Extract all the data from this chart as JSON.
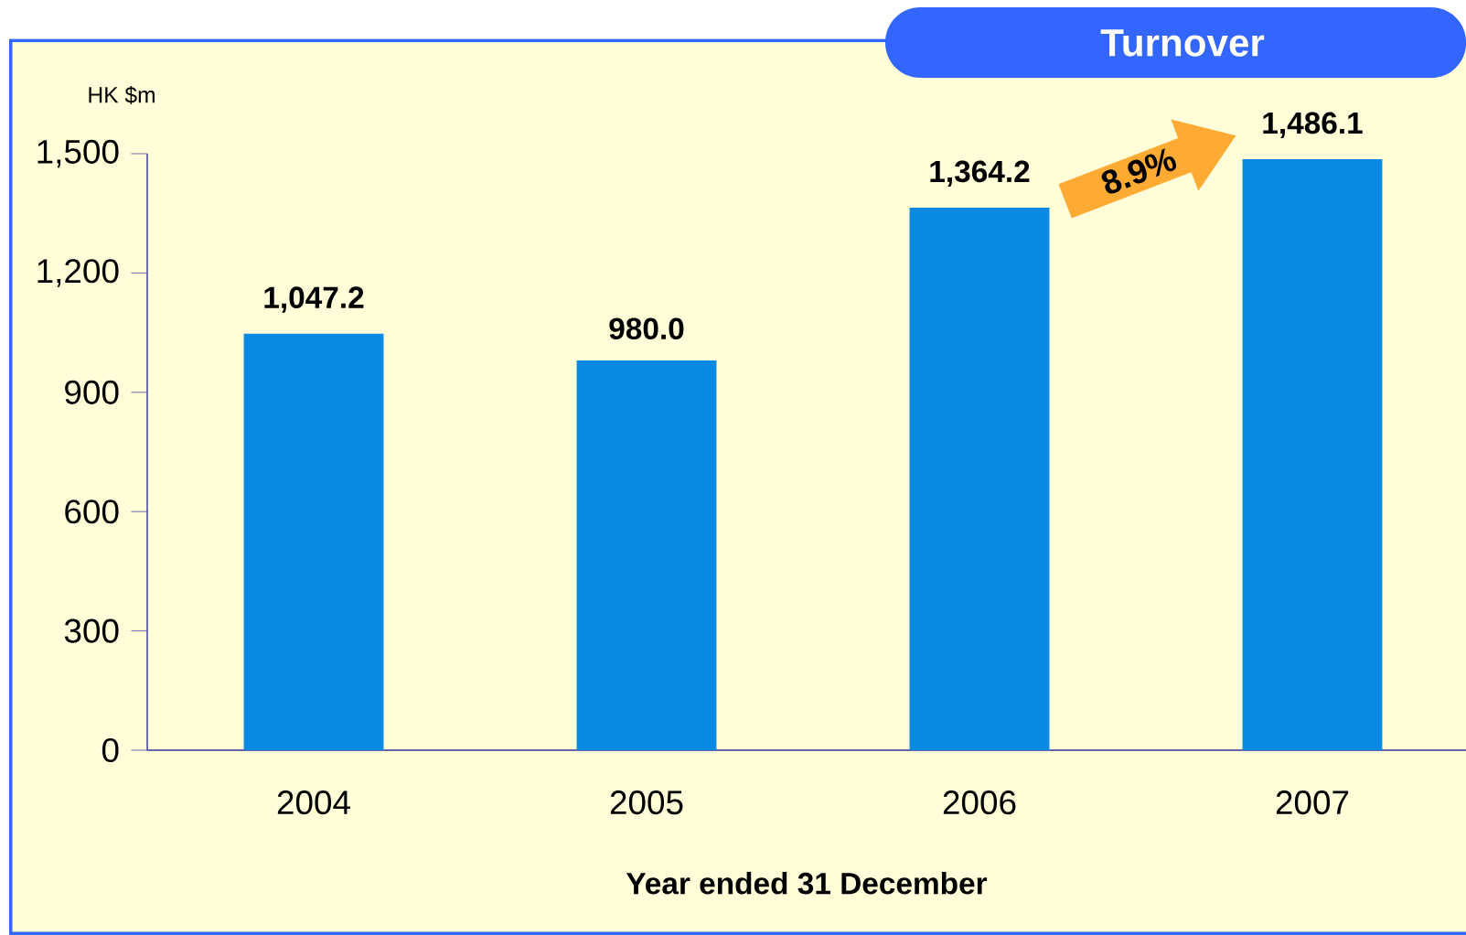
{
  "chart_data": {
    "type": "bar",
    "title": "Turnover",
    "ylabel": "HK $m",
    "xlabel": "Year ended 31 December",
    "categories": [
      "2004",
      "2005",
      "2006",
      "2007"
    ],
    "values": [
      1047.2,
      980.0,
      1364.2,
      1486.1
    ],
    "value_labels": [
      "1,047.2",
      "980.0",
      "1,364.2",
      "1,486.1"
    ],
    "color": "#0a8ae0",
    "ylim": [
      0,
      1500
    ],
    "yticks": [
      0,
      300,
      600,
      900,
      {
        "value": 1200,
        "label": "1,200"
      },
      {
        "value": 1500,
        "label": "1,500"
      }
    ],
    "annotations": [
      "8.9%"
    ]
  }
}
